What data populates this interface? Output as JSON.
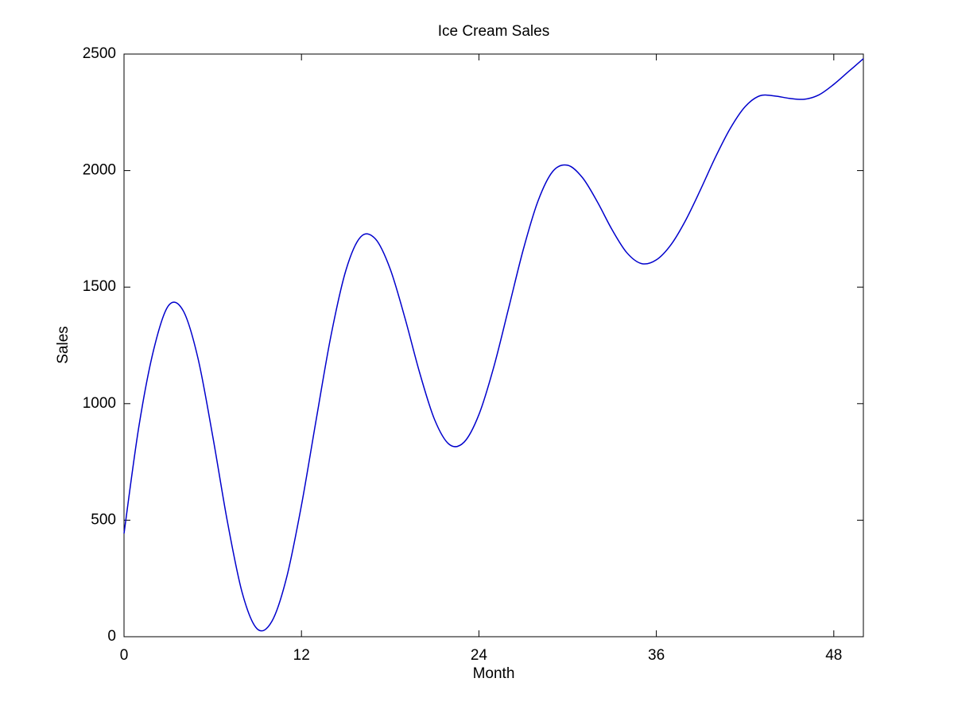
{
  "chart_data": {
    "type": "line",
    "title": "Ice Cream Sales",
    "x_label": "Month",
    "y_label": "Sales",
    "x": [
      0,
      1,
      2,
      3,
      4,
      5,
      6,
      7,
      8,
      9,
      10,
      11,
      12,
      13,
      14,
      15,
      16,
      17,
      18,
      19,
      20,
      21,
      22,
      23,
      24,
      25,
      26,
      27,
      28,
      29,
      30,
      31,
      32,
      33,
      34,
      35,
      36,
      37,
      38,
      39,
      40,
      41,
      42,
      43,
      44,
      45,
      46,
      47,
      48,
      49,
      50
    ],
    "series": [
      {
        "name": "Sales",
        "color": "#0000cc",
        "values": [
          443,
          900,
          1230,
          1420,
          1399,
          1195,
          860,
          491,
          187,
          34,
          66,
          255,
          564,
          933,
          1293,
          1571,
          1715,
          1707,
          1578,
          1367,
          1131,
          932,
          825,
          835,
          953,
          1156,
          1407,
          1661,
          1870,
          1997,
          2023,
          1970,
          1867,
          1747,
          1648,
          1601,
          1617,
          1683,
          1789,
          1920,
          2058,
          2181,
          2274,
          2321,
          2320,
          2310,
          2306,
          2325,
          2370,
          2425,
          2480
        ]
      }
    ],
    "xlim": [
      0,
      50
    ],
    "xticks": [
      0,
      12,
      24,
      36,
      48
    ],
    "ylim": [
      0,
      2500
    ],
    "yticks": [
      0,
      500,
      1000,
      1500,
      2000,
      2500
    ],
    "grid": false
  }
}
